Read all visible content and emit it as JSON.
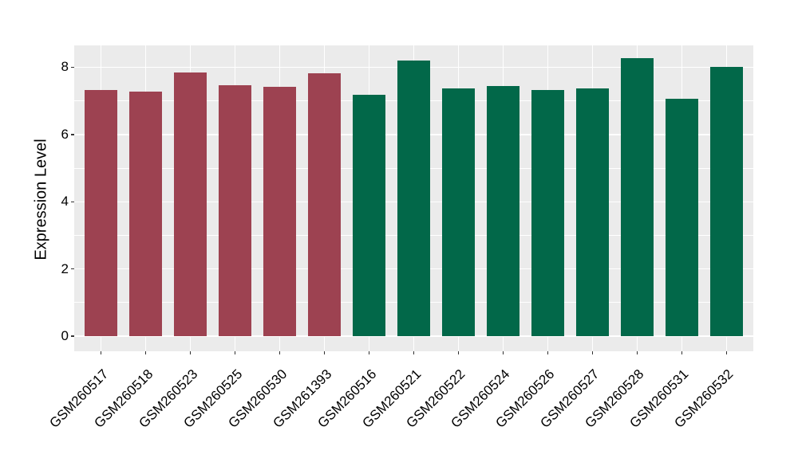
{
  "page": {
    "background": "#FFFFFF"
  },
  "chart_data": {
    "type": "bar",
    "title": "",
    "xlabel": "",
    "ylabel": "Expression Level",
    "categories": [
      "GSM260517",
      "GSM260518",
      "GSM260523",
      "GSM260525",
      "GSM260530",
      "GSM261393",
      "GSM260516",
      "GSM260521",
      "GSM260522",
      "GSM260524",
      "GSM260526",
      "GSM260527",
      "GSM260528",
      "GSM260531",
      "GSM260532"
    ],
    "values": [
      7.32,
      7.27,
      7.85,
      7.47,
      7.42,
      7.82,
      7.18,
      8.19,
      7.38,
      7.45,
      7.32,
      7.36,
      8.26,
      7.06,
      8.02
    ],
    "bar_colors": [
      "#9D4251",
      "#9D4251",
      "#9D4251",
      "#9D4251",
      "#9D4251",
      "#9D4251",
      "#026849",
      "#026849",
      "#026849",
      "#026849",
      "#026849",
      "#026849",
      "#026849",
      "#026849",
      "#026849"
    ],
    "yticks": [
      0,
      2,
      4,
      6,
      8
    ],
    "minor_yticks": [
      1,
      3,
      5,
      7
    ],
    "ylim": [
      -0.45,
      8.65
    ],
    "grid": true,
    "legend": false,
    "panel_bg": "#EBEBEB",
    "grid_color": "#FFFFFF",
    "tick_color": "#333333",
    "text_color": "#000000"
  }
}
